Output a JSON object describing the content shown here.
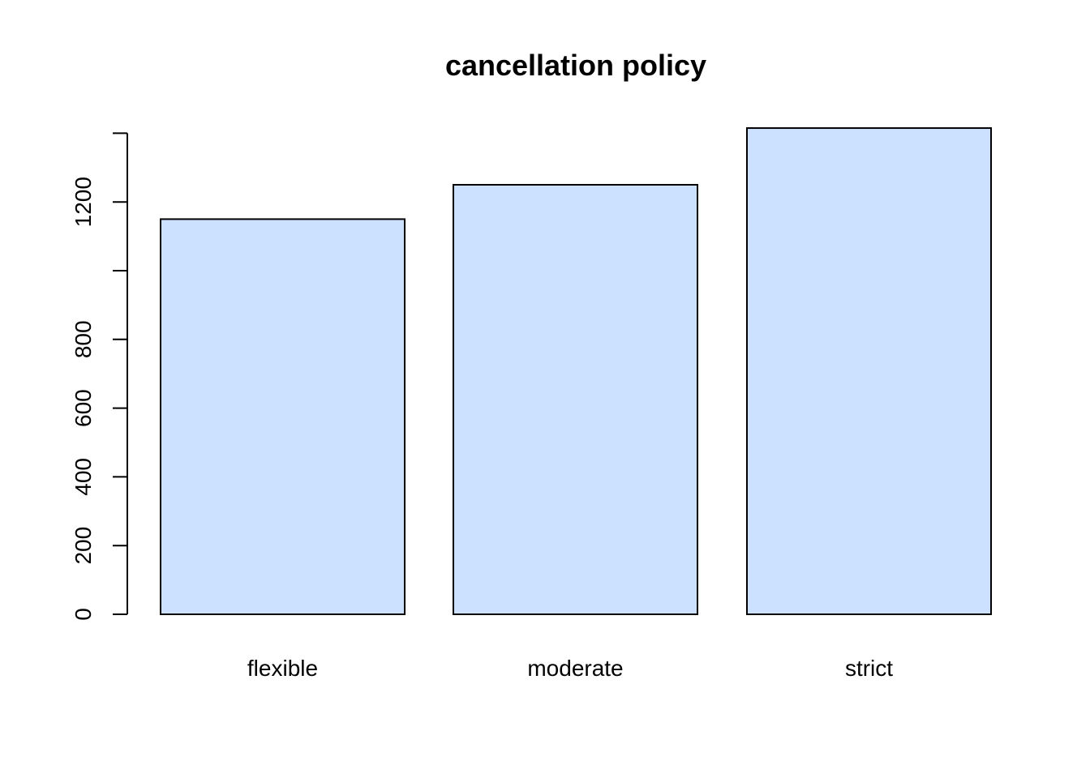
{
  "chart_data": {
    "type": "bar",
    "title": "cancellation policy",
    "xlabel": "",
    "ylabel": "",
    "categories": [
      "flexible",
      "moderate",
      "strict"
    ],
    "values": [
      1150,
      1250,
      1415
    ],
    "ylim": [
      0,
      1400
    ],
    "yticks": [
      0,
      200,
      400,
      600,
      800,
      1000,
      1200,
      1400
    ],
    "ytick_labels": [
      "0",
      "200",
      "400",
      "600",
      "800",
      "",
      "1200",
      ""
    ],
    "grid": false,
    "legend": "none",
    "bar_color": "#cce0ff",
    "border_color": "#000000"
  }
}
